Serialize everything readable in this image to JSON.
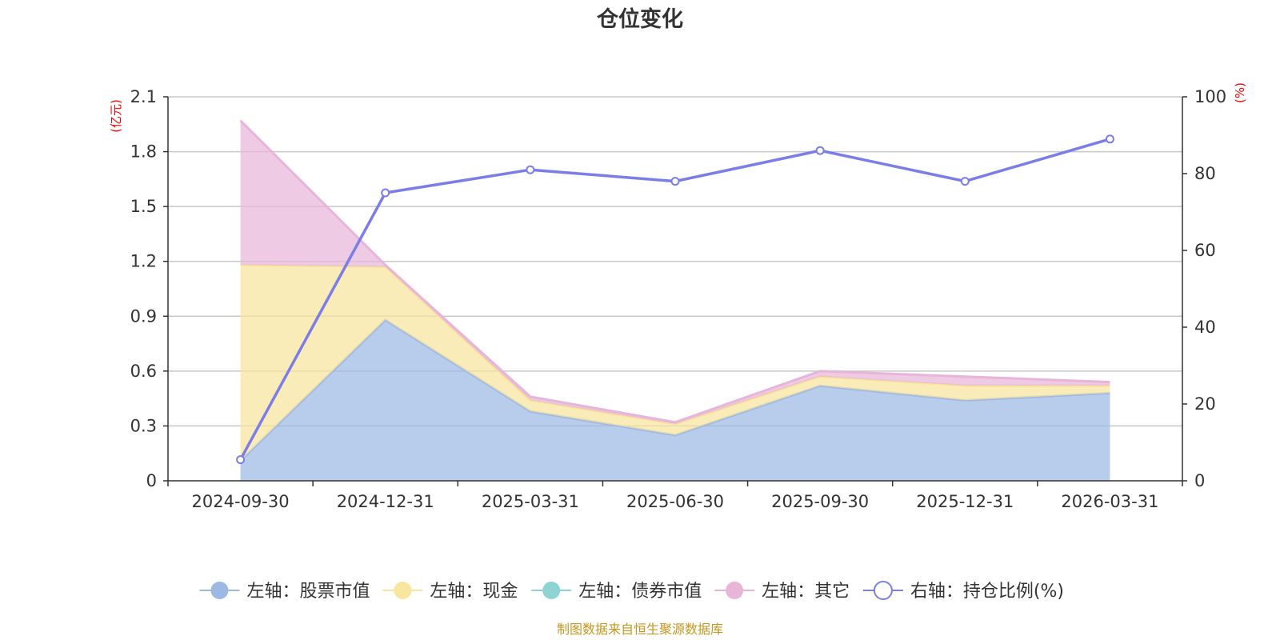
{
  "chart_data": {
    "type": "area",
    "title": "仓位变化",
    "left_axis": {
      "unit_label": "(亿元)",
      "ticks": [
        "0",
        "0.3",
        "0.6",
        "0.9",
        "1.2",
        "1.5",
        "1.8",
        "2.1"
      ],
      "ylim": [
        0,
        2.1
      ]
    },
    "right_axis": {
      "unit_label": "(%)",
      "ticks": [
        "0",
        "20",
        "40",
        "60",
        "80",
        "100"
      ],
      "ylim": [
        0,
        100
      ]
    },
    "categories": [
      "2024-09-30",
      "2024-12-31",
      "2025-03-31",
      "2025-06-30",
      "2025-09-30",
      "2025-12-31",
      "2026-03-31"
    ],
    "series": [
      {
        "name": "左轴：股票市值",
        "axis": "left",
        "stack": true,
        "color": "#9db8e3",
        "values": [
          0.11,
          0.88,
          0.38,
          0.25,
          0.52,
          0.44,
          0.48
        ]
      },
      {
        "name": "左轴：现金",
        "axis": "left",
        "stack": true,
        "color": "#f8e59e",
        "values": [
          1.07,
          0.29,
          0.06,
          0.06,
          0.05,
          0.08,
          0.04
        ]
      },
      {
        "name": "左轴：债券市值",
        "axis": "left",
        "stack": true,
        "color": "#8fd3d3",
        "values": [
          0,
          0,
          0,
          0,
          0,
          0,
          0
        ]
      },
      {
        "name": "左轴：其它",
        "axis": "left",
        "stack": true,
        "color": "#e8b5d9",
        "values": [
          0.79,
          0.01,
          0.02,
          0.01,
          0.03,
          0.05,
          0.02
        ]
      },
      {
        "name": "右轴：持仓比例(%)",
        "axis": "right",
        "stack": false,
        "color": "#7b7de9",
        "values": [
          5.5,
          75,
          81,
          78,
          86,
          78,
          89
        ]
      }
    ],
    "grid": true,
    "legend_position": "bottom",
    "source_note": "制图数据来自恒生聚源数据库"
  }
}
